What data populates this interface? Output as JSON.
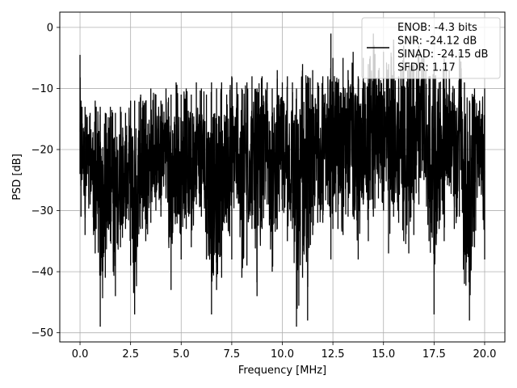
{
  "chart_data": {
    "type": "line",
    "title": "",
    "xlabel": "Frequency [MHz]",
    "ylabel": "PSD [dB]",
    "xlim": [
      -1.0,
      21.0
    ],
    "ylim": [
      -51.5,
      2.5
    ],
    "xticks": [
      0.0,
      2.5,
      5.0,
      7.5,
      10.0,
      12.5,
      15.0,
      17.5,
      20.0
    ],
    "xtick_labels": [
      "0.0",
      "2.5",
      "5.0",
      "7.5",
      "10.0",
      "12.5",
      "15.0",
      "17.5",
      "20.0"
    ],
    "yticks": [
      0,
      -10,
      -20,
      -30,
      -40,
      -50
    ],
    "ytick_labels": [
      "0",
      "−10",
      "−20",
      "−30",
      "−40",
      "−50"
    ],
    "grid": true,
    "legend": {
      "placement": "upper right",
      "entries": [
        "ENOB: -4.3 bits",
        "SNR: -24.12 dB",
        "SINAD: -24.15 dB",
        "SFDR: 1.17"
      ]
    },
    "series": [
      {
        "color": "#000000",
        "description": "noisy PSD trace",
        "x": [
          0.0,
          0.05,
          0.1,
          0.25,
          0.5,
          0.75,
          0.8,
          1.0,
          1.25,
          1.5,
          1.75,
          2.0,
          2.25,
          2.5,
          2.7,
          3.0,
          3.25,
          3.5,
          3.75,
          4.0,
          4.25,
          4.5,
          4.75,
          5.0,
          5.25,
          5.5,
          5.75,
          6.0,
          6.25,
          6.5,
          6.75,
          7.0,
          7.25,
          7.5,
          7.75,
          8.0,
          8.25,
          8.5,
          8.75,
          9.0,
          9.25,
          9.5,
          9.75,
          10.0,
          10.25,
          10.5,
          10.7,
          11.0,
          11.25,
          11.5,
          11.75,
          12.0,
          12.25,
          12.4,
          12.5,
          12.75,
          13.0,
          13.25,
          13.5,
          13.75,
          14.0,
          14.25,
          14.5,
          14.75,
          15.0,
          15.25,
          15.5,
          15.75,
          16.0,
          16.25,
          16.5,
          16.75,
          17.0,
          17.25,
          17.5,
          17.75,
          18.0,
          18.25,
          18.5,
          18.75,
          19.0,
          19.25,
          19.5,
          19.75,
          20.0
        ],
        "y_max": [
          -4.5,
          -12,
          -13,
          -13,
          -14,
          -12,
          -13,
          -13,
          -14,
          -13,
          -14,
          -13,
          -14,
          -12,
          -12,
          -11,
          -12,
          -10,
          -11,
          -12,
          -10,
          -11,
          -9,
          -11,
          -10,
          -11,
          -9,
          -10,
          -11,
          -9,
          -10,
          -9,
          -11,
          -8,
          -9,
          -10,
          -9,
          -8,
          -10,
          -8,
          -9,
          -10,
          -7,
          -9,
          -8,
          -9,
          -10,
          -6,
          -8,
          -7,
          -9,
          -8,
          -8,
          -1,
          -5,
          -9,
          -5,
          -7,
          -4,
          -8,
          -5,
          -6,
          -1,
          -7,
          -4,
          -6,
          -2,
          -8,
          -3,
          -6,
          -6,
          -3,
          -5,
          -8,
          -6,
          -9,
          -5,
          -7,
          -10,
          -4,
          -9,
          -12,
          -10,
          -12,
          -10
        ],
        "y_min": [
          -24,
          -31,
          -25,
          -34,
          -29,
          -37,
          -33,
          -49,
          -41,
          -35,
          -44,
          -36,
          -33,
          -39,
          -47,
          -33,
          -35,
          -32,
          -30,
          -31,
          -28,
          -43,
          -31,
          -38,
          -33,
          -36,
          -29,
          -31,
          -38,
          -47,
          -43,
          -41,
          -32,
          -38,
          -28,
          -41,
          -39,
          -33,
          -44,
          -33,
          -29,
          -40,
          -33,
          -30,
          -35,
          -33,
          -49,
          -41,
          -48,
          -34,
          -32,
          -32,
          -29,
          -38,
          -33,
          -33,
          -34,
          -31,
          -31,
          -38,
          -29,
          -35,
          -31,
          -28,
          -30,
          -37,
          -31,
          -32,
          -35,
          -37,
          -34,
          -29,
          -25,
          -35,
          -47,
          -33,
          -35,
          -26,
          -33,
          -31,
          -42,
          -48,
          -36,
          -26,
          -38
        ]
      }
    ]
  }
}
